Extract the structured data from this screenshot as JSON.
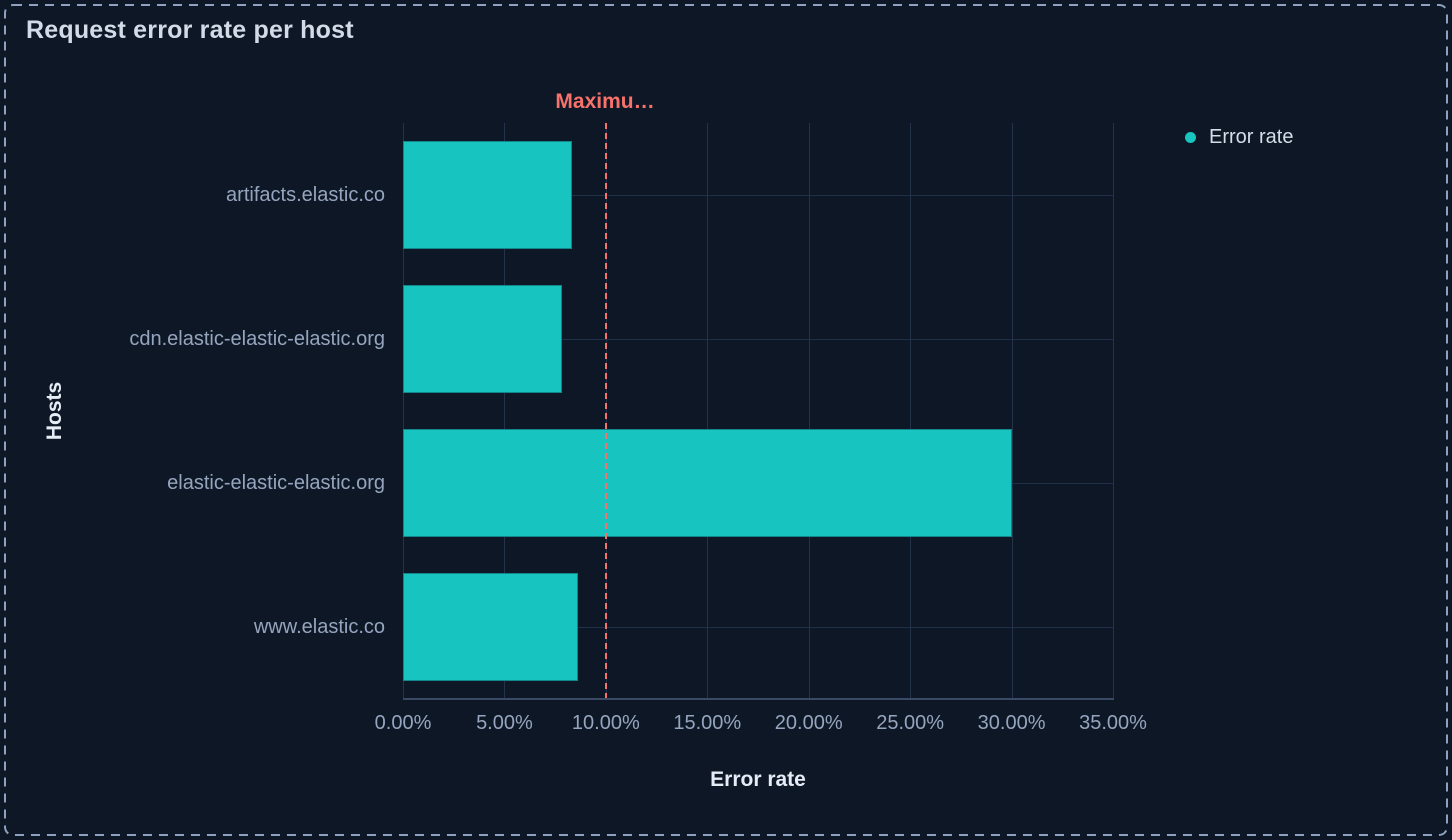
{
  "panel": {
    "title": "Request error rate per host",
    "background_color": "#0D1726",
    "selection_border_color": "#8EA2BF"
  },
  "legend": {
    "position": "right",
    "items": [
      {
        "label": "Error rate",
        "swatch": "circle",
        "color": "#17C4BF"
      }
    ]
  },
  "chart_data": {
    "type": "bar",
    "orientation": "horizontal",
    "title": "Request error rate per host",
    "categories": [
      "artifacts.elastic.co",
      "cdn.elastic-elastic-elastic.org",
      "elastic-elastic-elastic.org",
      "www.elastic.co"
    ],
    "series": [
      {
        "name": "Error rate",
        "values": [
          8.33,
          7.85,
          30.0,
          8.63
        ],
        "color": "#17C4BF"
      }
    ],
    "xlabel": "Error rate",
    "ylabel": "Hosts",
    "xlim": [
      0,
      35
    ],
    "x_ticks": [
      {
        "value": 0,
        "label": "0.00%"
      },
      {
        "value": 5,
        "label": "5.00%"
      },
      {
        "value": 10,
        "label": "10.00%"
      },
      {
        "value": 15,
        "label": "15.00%"
      },
      {
        "value": 20,
        "label": "20.00%"
      },
      {
        "value": 25,
        "label": "25.00%"
      },
      {
        "value": 30,
        "label": "30.00%"
      },
      {
        "value": 35,
        "label": "35.00%"
      }
    ],
    "grid": true,
    "legend_position": "right",
    "annotations": [
      {
        "type": "vline",
        "value": 10,
        "label": "Maximu…",
        "line_style": "dashed",
        "color": "#F6726A"
      }
    ]
  }
}
